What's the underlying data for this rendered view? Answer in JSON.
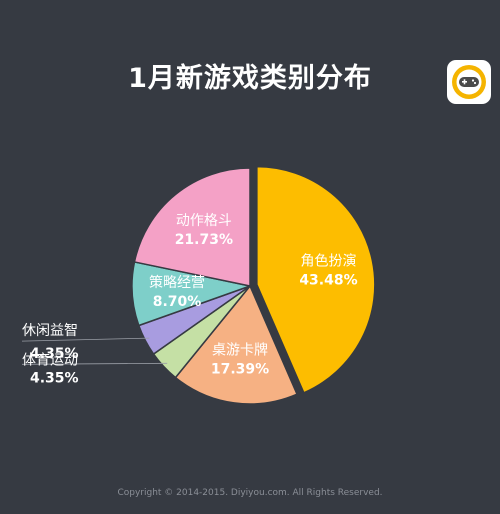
{
  "title": "1月新游戏类别分布",
  "footer": "Copyright © 2014-2015. Diyiyou.com. All Rights Reserved.",
  "logo_icon": "gamepad-icon",
  "colors": {
    "background": "#363a42",
    "logo_ring": "#f5b400"
  },
  "chart_data": {
    "type": "pie",
    "title": "1月新游戏类别分布",
    "slices": [
      {
        "label": "角色扮演",
        "value": 43.48,
        "value_label": "43.48%",
        "color": "#fdbd00"
      },
      {
        "label": "桌游卡牌",
        "value": 17.39,
        "value_label": "17.39%",
        "color": "#f6b183"
      },
      {
        "label": "体育运动",
        "value": 4.35,
        "value_label": "4.35%",
        "color": "#c5e0a5"
      },
      {
        "label": "休闲益智",
        "value": 4.35,
        "value_label": "4.35%",
        "color": "#a89ce0"
      },
      {
        "label": "策略经营",
        "value": 8.7,
        "value_label": "8.70%",
        "color": "#7ecfc9"
      },
      {
        "label": "动作格斗",
        "value": 21.73,
        "value_label": "21.73%",
        "color": "#f4a1c6"
      }
    ],
    "start_angle": "12 o'clock",
    "direction": "clockwise",
    "exploded_slice": "角色扮演"
  }
}
